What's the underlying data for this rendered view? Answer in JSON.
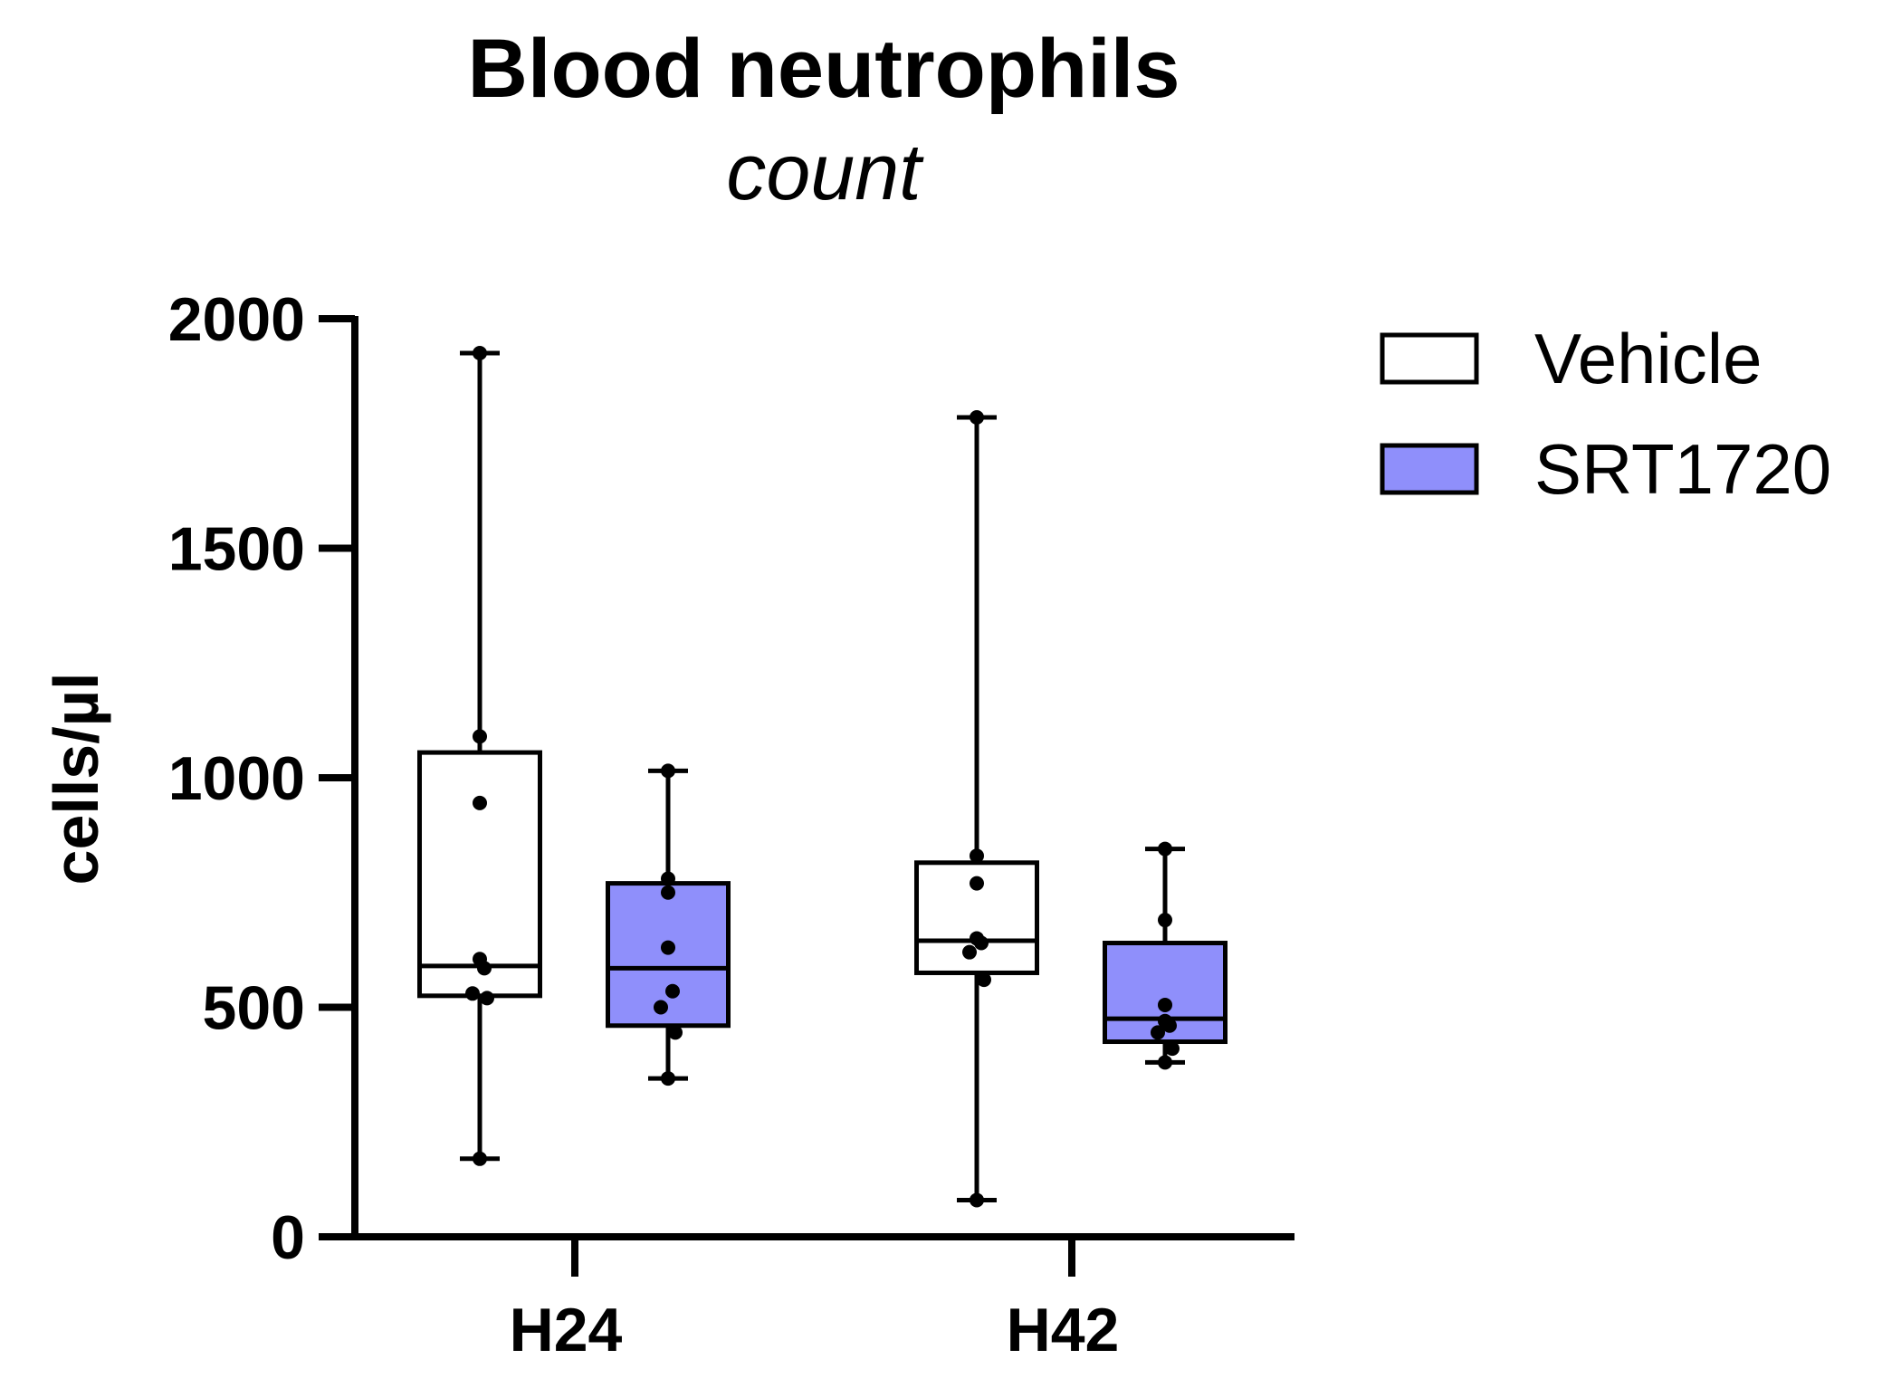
{
  "chart_data": {
    "type": "box",
    "title": "Blood neutrophils",
    "subtitle": "count",
    "xlabel": "",
    "ylabel": "cells/µl",
    "ylim": [
      0,
      2000
    ],
    "yticks": [
      0,
      500,
      1000,
      1500,
      2000
    ],
    "categories": [
      "H24",
      "H42"
    ],
    "legend": {
      "position": "top-right",
      "entries": [
        "Vehicle",
        "SRT1720"
      ]
    },
    "series": [
      {
        "name": "Vehicle",
        "color": "#ffffff",
        "boxes": [
          {
            "category": "H24",
            "min": 170,
            "q1": 525,
            "median": 590,
            "q3": 1055,
            "max": 1925,
            "points": [
              1925,
              1090,
              945,
              605,
              585,
              530,
              520,
              170
            ]
          },
          {
            "category": "H42",
            "min": 80,
            "q1": 575,
            "median": 645,
            "q3": 815,
            "max": 1785,
            "points": [
              1785,
              830,
              770,
              650,
              640,
              620,
              560,
              80
            ]
          }
        ]
      },
      {
        "name": "SRT1720",
        "color": "#8f8ffb",
        "boxes": [
          {
            "category": "H24",
            "min": 345,
            "q1": 460,
            "median": 585,
            "q3": 770,
            "max": 1015,
            "points": [
              1015,
              780,
              750,
              630,
              535,
              500,
              445,
              345
            ]
          },
          {
            "category": "H42",
            "min": 380,
            "q1": 425,
            "median": 475,
            "q3": 640,
            "max": 845,
            "points": [
              845,
              690,
              505,
              470,
              460,
              445,
              410,
              380
            ]
          }
        ]
      }
    ]
  }
}
